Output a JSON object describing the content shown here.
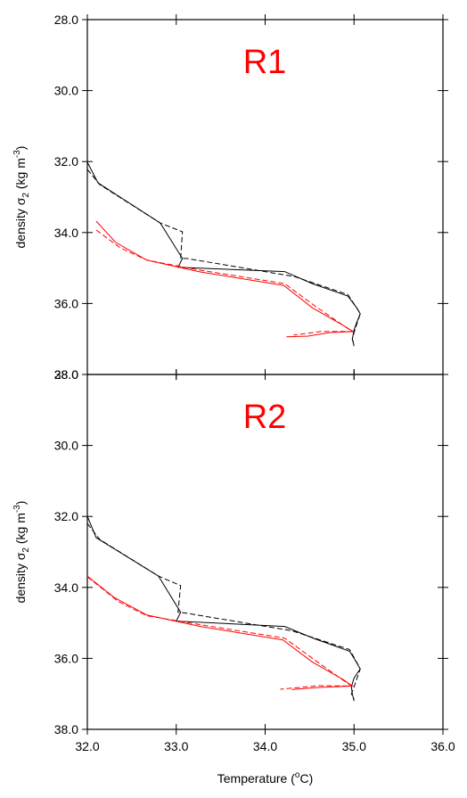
{
  "chart_data": [
    {
      "type": "line",
      "title": "R1",
      "title_color": "#ff0000",
      "ylabel": {
        "text": "density σ",
        "sub": "2",
        "unit": " (kg m",
        "sup": "-3",
        "end": ")"
      },
      "invert_y": true,
      "xlim": [
        32,
        36
      ],
      "xticks": [
        32,
        33,
        34,
        35,
        36
      ],
      "ylim": [
        28,
        38
      ],
      "yticks": [
        {
          "value": 28,
          "label": "28.0"
        },
        {
          "value": 30,
          "label": "30.0"
        },
        {
          "value": 32,
          "label": "32.0"
        },
        {
          "value": 34,
          "label": "34.0"
        },
        {
          "value": 36,
          "label": "36.0"
        },
        {
          "value": 38,
          "label": "38.0"
        }
      ],
      "series": [
        {
          "color": "#000000",
          "dash": false,
          "x": [
            32.0,
            32.12,
            32.82,
            33.07,
            33.02,
            34.22,
            34.53,
            34.93,
            35.03,
            35.07,
            35.03,
            35.0,
            34.98,
            35.0
          ],
          "values": [
            32.02,
            32.6,
            33.73,
            34.73,
            34.98,
            35.1,
            35.44,
            35.79,
            36.12,
            36.29,
            36.54,
            36.74,
            37.0,
            37.2
          ]
        },
        {
          "color": "#000000",
          "dash": true,
          "x": [
            32.0,
            32.14,
            32.82,
            33.07,
            33.05,
            33.12,
            34.33,
            34.93,
            35.05,
            35.07,
            35.01,
            34.98,
            35.0
          ],
          "values": [
            32.22,
            32.65,
            33.73,
            33.98,
            34.73,
            34.73,
            35.24,
            35.75,
            36.2,
            36.29,
            36.74,
            37.0,
            37.15
          ]
        },
        {
          "color": "#ff0000",
          "dash": false,
          "x": [
            32.1,
            32.32,
            32.67,
            33.27,
            34.21,
            34.53,
            34.88,
            34.99,
            34.73,
            34.48,
            34.24
          ],
          "values": [
            33.68,
            34.28,
            34.78,
            35.11,
            35.49,
            36.12,
            36.62,
            36.79,
            36.82,
            36.92,
            36.94
          ]
        },
        {
          "color": "#ff0000",
          "dash": true,
          "x": [
            32.1,
            32.37,
            32.67,
            33.27,
            34.22,
            34.56,
            34.88,
            34.98,
            34.63,
            34.32
          ],
          "values": [
            33.93,
            34.43,
            34.78,
            35.06,
            35.44,
            36.07,
            36.62,
            36.79,
            36.79,
            36.89
          ]
        }
      ]
    },
    {
      "type": "line",
      "title": "R2",
      "title_color": "#ff0000",
      "ylabel": {
        "text": "density σ",
        "sub": "2",
        "unit": " (kg m",
        "sup": "-3",
        "end": ")"
      },
      "xlabel": {
        "text": "Temperature (",
        "sup": "o",
        "end": "C)"
      },
      "invert_y": true,
      "xlim": [
        32,
        36
      ],
      "xticks": [
        {
          "value": 32,
          "label": "32.0"
        },
        {
          "value": 33,
          "label": "33.0"
        },
        {
          "value": 34,
          "label": "34.0"
        },
        {
          "value": 35,
          "label": "35.0"
        },
        {
          "value": 36,
          "label": "36.0"
        }
      ],
      "ylim": [
        28,
        38
      ],
      "yticks": [
        {
          "value": 28,
          "label": "28.0"
        },
        {
          "value": 30,
          "label": "30.0"
        },
        {
          "value": 32,
          "label": "32.0"
        },
        {
          "value": 34,
          "label": "34.0"
        },
        {
          "value": 36,
          "label": "36.0"
        },
        {
          "value": 38,
          "label": "38.0"
        }
      ],
      "series": [
        {
          "color": "#000000",
          "dash": false,
          "x": [
            32.0,
            32.1,
            32.8,
            33.05,
            33.0,
            34.22,
            34.55,
            34.95,
            35.03,
            35.07,
            35.0,
            34.97,
            34.98,
            35.0
          ],
          "values": [
            32.0,
            32.6,
            33.68,
            34.7,
            34.95,
            35.1,
            35.44,
            35.8,
            36.12,
            36.3,
            36.55,
            36.8,
            37.0,
            37.2
          ]
        },
        {
          "color": "#000000",
          "dash": true,
          "x": [
            32.0,
            32.14,
            32.8,
            33.05,
            33.02,
            33.1,
            34.3,
            34.95,
            35.05,
            35.07,
            35.0,
            34.97,
            35.0
          ],
          "values": [
            32.2,
            32.65,
            33.68,
            33.95,
            34.7,
            34.72,
            35.22,
            35.75,
            36.2,
            36.3,
            36.8,
            37.0,
            37.15
          ]
        },
        {
          "color": "#ff0000",
          "dash": false,
          "x": [
            32.0,
            32.3,
            32.67,
            33.27,
            34.2,
            34.53,
            34.88,
            34.98,
            34.6,
            34.3
          ],
          "values": [
            33.68,
            34.28,
            34.78,
            35.1,
            35.48,
            36.1,
            36.6,
            36.78,
            36.82,
            36.88
          ]
        },
        {
          "color": "#ff0000",
          "dash": true,
          "x": [
            32.0,
            32.35,
            32.67,
            33.27,
            34.22,
            34.56,
            34.88,
            34.97,
            34.6,
            34.17
          ],
          "values": [
            33.7,
            34.4,
            34.8,
            35.05,
            35.43,
            36.05,
            36.62,
            36.78,
            36.77,
            36.87
          ]
        }
      ]
    }
  ]
}
